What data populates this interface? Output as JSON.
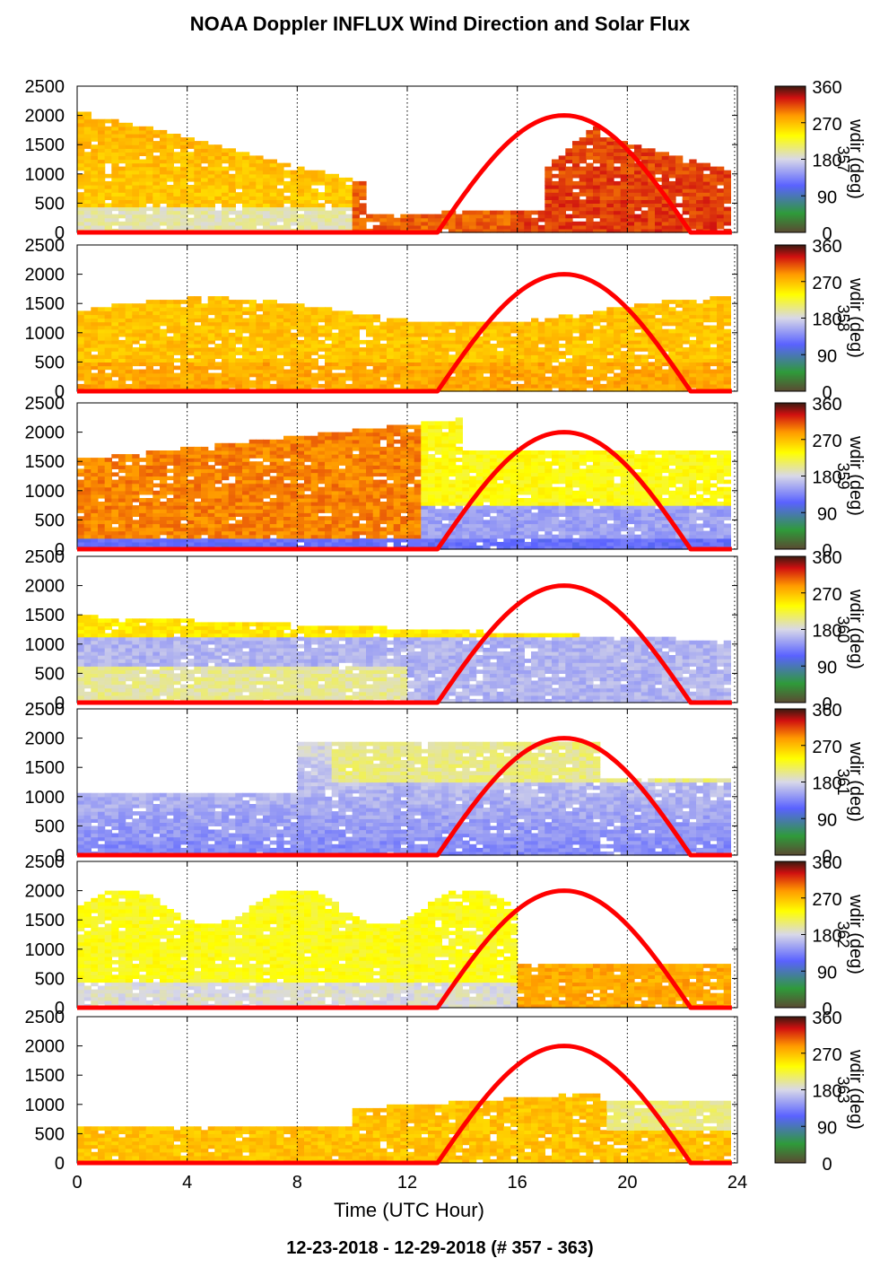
{
  "title": "NOAA Doppler INFLUX Wind Direction and Solar Flux",
  "footer": "12-23-2018 - 12-29-2018   (# 357 - 363)",
  "colors": {
    "solar_curve": "#ff0000",
    "colorbar": [
      "#5a4a32",
      "#2f9a3a",
      "#5a62ff",
      "#d8d8e8",
      "#ffff00",
      "#ff9900",
      "#d01010",
      "#3a1a10"
    ]
  },
  "chart_data": {
    "type": "heatmap",
    "xlabel": "Time (UTC Hour)",
    "xlim": [
      0,
      24
    ],
    "xticks": [
      0,
      4,
      8,
      12,
      16,
      20,
      24
    ],
    "ylim": [
      0,
      2500
    ],
    "yticks": [
      0,
      500,
      1000,
      1500,
      2000,
      2500
    ],
    "grid": "vertical dotted lines at 4-hour ticks",
    "colorbar": {
      "label": "wdir (deg)",
      "range": [
        0,
        360
      ],
      "ticks": [
        0,
        90,
        180,
        270,
        360
      ]
    },
    "solar_flux_curve": {
      "color": "red",
      "sunrise_hour": 13.1,
      "sunset_hour": 22.3,
      "peak_hour": 17.7,
      "peak_y": 2000
    },
    "panels": [
      {
        "day_label": "357",
        "wdir_summary": "westerly/southwesterly (270-300 deg) aloft before 12 UTC; near-northwesterly 300-330 deg after 15 UTC"
      },
      {
        "day_label": "358",
        "wdir_summary": "mostly 250-290 deg throughout, top near 1500 m"
      },
      {
        "day_label": "359",
        "wdir_summary": "250-300 deg aloft early; shift to 150-200 deg near surface after 13 UTC"
      },
      {
        "day_label": "360",
        "wdir_summary": "about 150-200 deg, upper layers 200-270 deg"
      },
      {
        "day_label": "361",
        "wdir_summary": "about 130-200 deg, mixed above after 9 UTC"
      },
      {
        "day_label": "362",
        "wdir_summary": "about 200-230 deg before 16 UTC, about 260 deg after"
      },
      {
        "day_label": "363",
        "wdir_summary": "about 250-270 deg, shallow layer below 1200 m"
      }
    ]
  }
}
